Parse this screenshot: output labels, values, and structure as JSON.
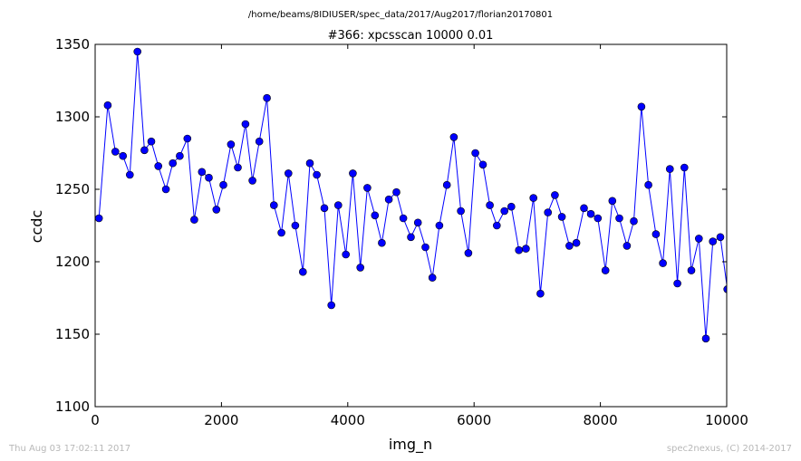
{
  "header": {
    "path": "/home/beams/8IDIUSER/spec_data/2017/Aug2017/florian20170801",
    "title": "#366: xpcsscan 10000 0.01"
  },
  "footer": {
    "timestamp": "Thu Aug 03 17:02:11 2017",
    "credit": "spec2nexus, (C) 2014-2017"
  },
  "colors": {
    "series": "#0000ff",
    "axes": "#000000",
    "footer_text": "#b8b8b8"
  },
  "chart_data": {
    "type": "line",
    "title": "#366: xpcsscan 10000 0.01",
    "xlabel": "img_n",
    "ylabel": "ccdc",
    "xlim": [
      0,
      10000
    ],
    "ylim": [
      1100,
      1350
    ],
    "xticks": [
      "0",
      "2000",
      "4000",
      "6000",
      "8000",
      "10000"
    ],
    "yticks": [
      "1100",
      "1150",
      "1200",
      "1250",
      "1300",
      "1350"
    ],
    "grid": false,
    "marker": "circle",
    "series": [
      {
        "x": [
          60,
          200,
          320,
          440,
          550,
          670,
          780,
          890,
          1000,
          1120,
          1230,
          1340,
          1460,
          1570,
          1690,
          1800,
          1920,
          2030,
          2150,
          2260,
          2380,
          2490,
          2600,
          2720,
          2830,
          2950,
          3060,
          3170,
          3290,
          3400,
          3510,
          3630,
          3740,
          3850,
          3970,
          4080,
          4200,
          4310,
          4430,
          4540,
          4650,
          4770,
          4880,
          5000,
          5110,
          5230,
          5340,
          5450,
          5570,
          5680,
          5790,
          5910,
          6020,
          6140,
          6250,
          6360,
          6480,
          6590,
          6710,
          6820,
          6940,
          7050,
          7170,
          7280,
          7390,
          7510,
          7620,
          7740,
          7850,
          7960,
          8080,
          8190,
          8300,
          8420,
          8530,
          8650,
          8760,
          8880,
          8990,
          9100,
          9220,
          9330,
          9440,
          9560,
          9670,
          9780,
          9900,
          10010
        ],
        "values": [
          1230,
          1308,
          1276,
          1273,
          1260,
          1345,
          1277,
          1283,
          1266,
          1250,
          1268,
          1273,
          1285,
          1229,
          1262,
          1258,
          1236,
          1253,
          1281,
          1265,
          1295,
          1256,
          1283,
          1313,
          1239,
          1220,
          1261,
          1225,
          1193,
          1268,
          1260,
          1237,
          1170,
          1239,
          1205,
          1261,
          1196,
          1251,
          1232,
          1213,
          1243,
          1248,
          1230,
          1217,
          1227,
          1210,
          1189,
          1225,
          1253,
          1286,
          1235,
          1206,
          1275,
          1267,
          1239,
          1225,
          1235,
          1238,
          1208,
          1209,
          1244,
          1178,
          1234,
          1246,
          1231,
          1211,
          1213,
          1237,
          1233,
          1230,
          1194,
          1242,
          1230,
          1211,
          1228,
          1307,
          1253,
          1219,
          1199,
          1264,
          1185,
          1265,
          1194,
          1216,
          1147,
          1214,
          1217,
          1181
        ]
      }
    ]
  }
}
